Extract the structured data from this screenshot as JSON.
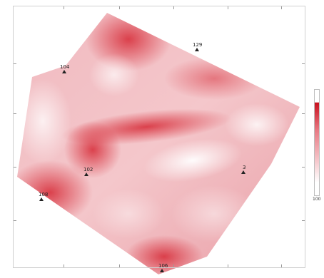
{
  "map": {
    "colorscale": {
      "low_color": "#ffffff",
      "high_color": "#d0202a"
    },
    "wells": [
      {
        "label": "129"
      },
      {
        "label": "104"
      },
      {
        "label": "102"
      },
      {
        "label": "108"
      },
      {
        "label": "3"
      },
      {
        "label": "106"
      }
    ],
    "legend": {
      "bottom_label": "100"
    }
  }
}
